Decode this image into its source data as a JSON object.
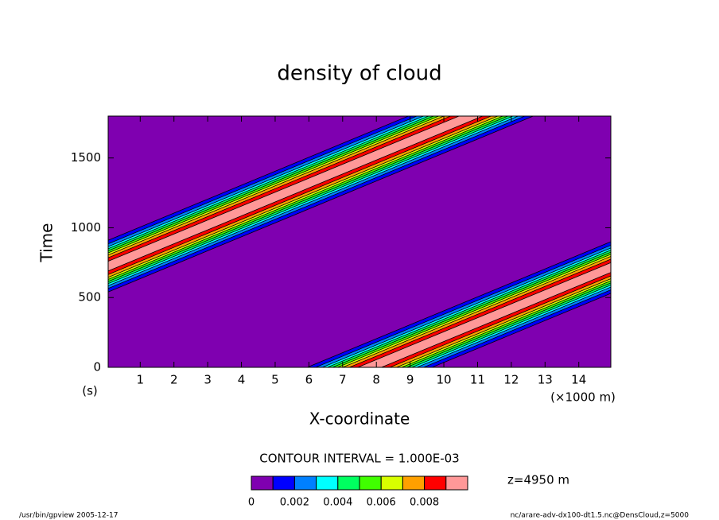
{
  "chart_data": {
    "type": "contour",
    "title": "density of cloud",
    "x_label": "X-coordinate",
    "x_unit": "(×1000 m)",
    "y_label": "Time",
    "y_unit": "(s)",
    "xlim": [
      0.05,
      14.95
    ],
    "xticks": [
      1,
      2,
      3,
      4,
      5,
      6,
      7,
      8,
      9,
      10,
      11,
      12,
      13,
      14
    ],
    "ylim": [
      0,
      1800
    ],
    "yticks": [
      0,
      500,
      1000,
      1500
    ],
    "contour_interval_label": "CONTOUR INTERVAL = 1.000E-03",
    "level_note": "z=4950 m",
    "levels": [
      0,
      0.001,
      0.002,
      0.003,
      0.004,
      0.005,
      0.006,
      0.007,
      0.008,
      0.009,
      0.01
    ],
    "colors": [
      "#7f00b0",
      "#0000ff",
      "#0080ff",
      "#00ffff",
      "#00ff60",
      "#40ff00",
      "#d8ff00",
      "#ffa000",
      "#ff0000",
      "#ff9898"
    ],
    "colorbar_ticks": [
      0,
      0.002,
      0.004,
      0.006,
      0.008
    ],
    "contours": [
      {
        "level": 0.001,
        "polygons": [
          [
            [
              5.95,
              0
            ],
            [
              9.65,
              0
            ],
            [
              27.65,
              1800
            ],
            [
              23.95,
              1800
            ]
          ],
          [
            [
              -9.05,
              0
            ],
            [
              -5.35,
              0
            ],
            [
              12.65,
              1800
            ],
            [
              8.95,
              1800
            ]
          ]
        ]
      },
      {
        "level": 0.002,
        "polygons": [
          [
            [
              6.2,
              0
            ],
            [
              9.4,
              0
            ],
            [
              27.4,
              1800
            ],
            [
              24.2,
              1800
            ]
          ],
          [
            [
              -8.8,
              0
            ],
            [
              -5.6,
              0
            ],
            [
              12.4,
              1800
            ],
            [
              9.2,
              1800
            ]
          ]
        ]
      },
      {
        "level": 0.003,
        "polygons": [
          [
            [
              6.4,
              0
            ],
            [
              9.2,
              0
            ],
            [
              27.2,
              1800
            ],
            [
              24.4,
              1800
            ]
          ],
          [
            [
              -8.6,
              0
            ],
            [
              -5.8,
              0
            ],
            [
              12.2,
              1800
            ],
            [
              9.4,
              1800
            ]
          ]
        ]
      },
      {
        "level": 0.004,
        "polygons": [
          [
            [
              6.55,
              0
            ],
            [
              9.05,
              0
            ],
            [
              27.05,
              1800
            ],
            [
              24.55,
              1800
            ]
          ],
          [
            [
              -8.45,
              0
            ],
            [
              -5.95,
              0
            ],
            [
              12.05,
              1800
            ],
            [
              9.55,
              1800
            ]
          ]
        ]
      },
      {
        "level": 0.005,
        "polygons": [
          [
            [
              6.7,
              0
            ],
            [
              8.9,
              0
            ],
            [
              26.9,
              1800
            ],
            [
              24.7,
              1800
            ]
          ],
          [
            [
              -8.3,
              0
            ],
            [
              -6.1,
              0
            ],
            [
              11.9,
              1800
            ],
            [
              9.7,
              1800
            ]
          ]
        ]
      },
      {
        "level": 0.006,
        "polygons": [
          [
            [
              6.85,
              0
            ],
            [
              8.75,
              0
            ],
            [
              26.75,
              1800
            ],
            [
              24.85,
              1800
            ]
          ],
          [
            [
              -8.15,
              0
            ],
            [
              -6.25,
              0
            ],
            [
              11.75,
              1800
            ],
            [
              9.85,
              1800
            ]
          ]
        ]
      },
      {
        "level": 0.007,
        "polygons": [
          [
            [
              7.0,
              0
            ],
            [
              8.6,
              0
            ],
            [
              26.6,
              1800
            ],
            [
              25.0,
              1800
            ]
          ],
          [
            [
              -8.0,
              0
            ],
            [
              -6.4,
              0
            ],
            [
              11.6,
              1800
            ],
            [
              10.0,
              1800
            ]
          ]
        ]
      },
      {
        "level": 0.008,
        "polygons": [
          [
            [
              7.2,
              0
            ],
            [
              8.4,
              0
            ],
            [
              26.4,
              1800
            ],
            [
              25.2,
              1800
            ]
          ],
          [
            [
              -7.8,
              0
            ],
            [
              -6.6,
              0
            ],
            [
              11.4,
              1800
            ],
            [
              10.2,
              1800
            ]
          ]
        ]
      },
      {
        "level": 0.009,
        "polygons": [
          [
            [
              7.45,
              0
            ],
            [
              8.15,
              0
            ],
            [
              26.15,
              1800
            ],
            [
              25.45,
              1800
            ]
          ],
          [
            [
              -7.55,
              0
            ],
            [
              -6.85,
              0
            ],
            [
              11.15,
              1800
            ],
            [
              10.45,
              1800
            ]
          ]
        ]
      }
    ],
    "footer_left": "/usr/bin/gpview  2005-12-17",
    "footer_right": "nc/arare-adv-dx100-dt1.5.nc@DensCloud,z=5000"
  }
}
